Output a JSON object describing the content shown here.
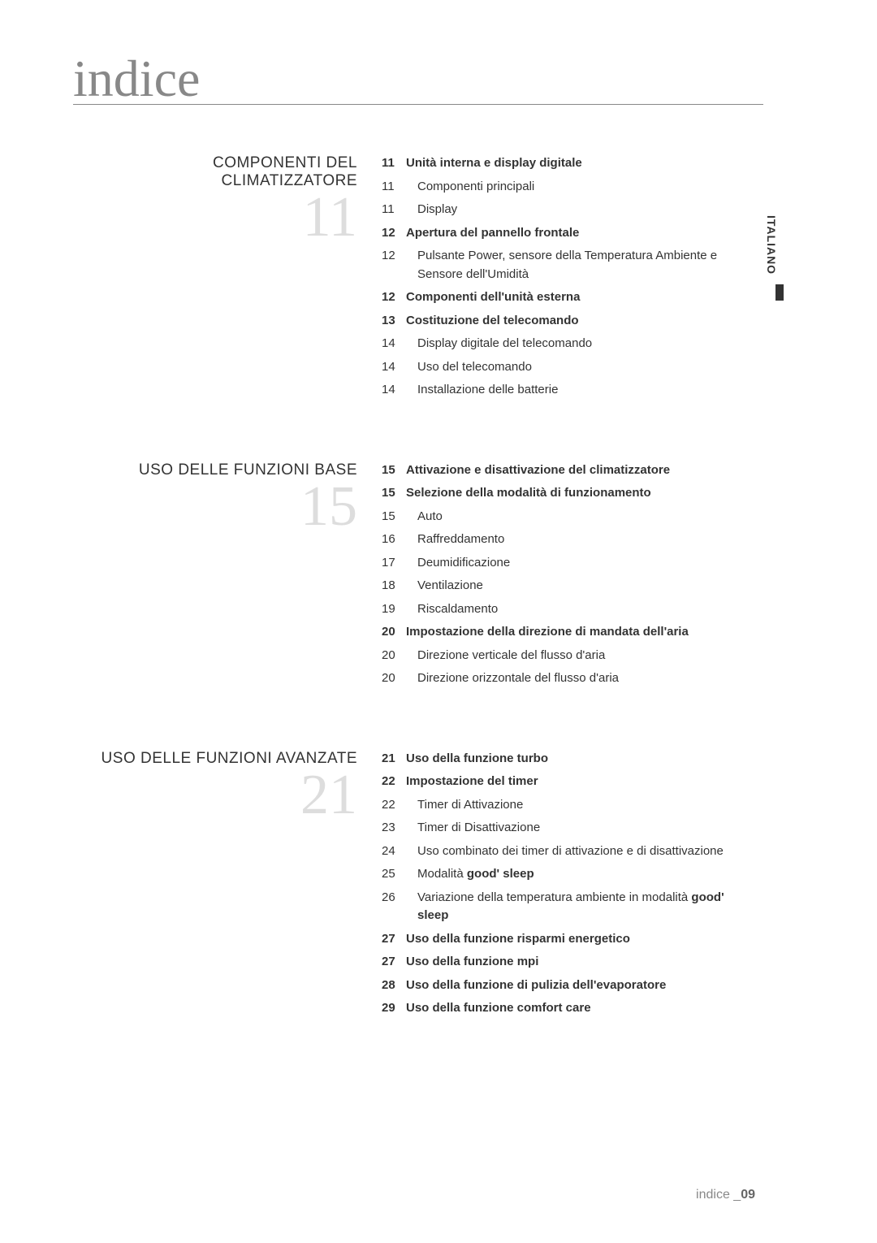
{
  "page_title": "indice",
  "sidebar_label": "ITALIANO",
  "footer_label": "indice _",
  "footer_page": "09",
  "sections": [
    {
      "heading": "COMPONENTI DEL CLIMATIZZATORE",
      "number": "11",
      "items": [
        {
          "page": "11",
          "text": "Unità interna e display digitale",
          "bold": true
        },
        {
          "page": "11",
          "text": "Componenti principali",
          "indent": true
        },
        {
          "page": "11",
          "text": "Display",
          "indent": true
        },
        {
          "page": "12",
          "text": "Apertura del pannello frontale",
          "bold": true
        },
        {
          "page": "12",
          "text": "Pulsante Power, sensore della Temperatura Ambiente e Sensore dell'Umidità",
          "indent": true
        },
        {
          "page": "12",
          "text": "Componenti dell'unità esterna",
          "bold": true
        },
        {
          "page": "13",
          "text": "Costituzione del telecomando",
          "bold": true
        },
        {
          "page": "14",
          "text": "Display digitale del telecomando",
          "indent": true
        },
        {
          "page": "14",
          "text": "Uso del telecomando",
          "indent": true
        },
        {
          "page": "14",
          "text": "Installazione delle batterie",
          "indent": true
        }
      ]
    },
    {
      "heading": "USO DELLE FUNZIONI BASE",
      "number": "15",
      "items": [
        {
          "page": "15",
          "text": "Attivazione e disattivazione del climatizzatore",
          "bold": true
        },
        {
          "page": "15",
          "text": "Selezione della modalità di funzionamento",
          "bold": true
        },
        {
          "page": "15",
          "text": "Auto",
          "indent": true
        },
        {
          "page": "16",
          "text": "Raffreddamento",
          "indent": true
        },
        {
          "page": "17",
          "text": "Deumidificazione",
          "indent": true
        },
        {
          "page": "18",
          "text": "Ventilazione",
          "indent": true
        },
        {
          "page": "19",
          "text": "Riscaldamento",
          "indent": true
        },
        {
          "page": "20",
          "text": "Impostazione della direzione di mandata dell'aria",
          "bold": true
        },
        {
          "page": "20",
          "text": "Direzione verticale del flusso d'aria",
          "indent": true
        },
        {
          "page": "20",
          "text": "Direzione orizzontale  del flusso d'aria",
          "indent": true
        }
      ]
    },
    {
      "heading": "USO DELLE FUNZIONI AVANZATE",
      "number": "21",
      "items": [
        {
          "page": "21",
          "text": "Uso della funzione turbo",
          "bold": true
        },
        {
          "page": "22",
          "text": "Impostazione del timer",
          "bold": true
        },
        {
          "page": "22",
          "text": "Timer di Attivazione",
          "indent": true
        },
        {
          "page": "23",
          "text": "Timer di Disattivazione",
          "indent": true
        },
        {
          "page": "24",
          "text": "Uso combinato dei timer di attivazione e di disattivazione",
          "indent": true
        },
        {
          "page": "25",
          "special": "goodsleep1",
          "indent": true
        },
        {
          "page": "26",
          "special": "goodsleep2",
          "indent": true
        },
        {
          "page": "27",
          "text": "Uso della funzione risparmi energetico",
          "bold": true
        },
        {
          "page": "27",
          "special": "mpi",
          "bold": true
        },
        {
          "page": "28",
          "text": "Uso della funzione di pulizia dell'evaporatore",
          "bold": true
        },
        {
          "page": "29",
          "text": "Uso della funzione comfort care",
          "bold": true
        }
      ]
    }
  ],
  "special_strings": {
    "goodsleep1_prefix": "Modalità ",
    "goodsleep1_bold": "good' sleep",
    "goodsleep2_prefix": "Variazione della temperatura ambiente in modalità ",
    "goodsleep2_bold": "good' sleep",
    "mpi_prefix": "Uso della funzione ",
    "mpi_bold": "mpi"
  }
}
